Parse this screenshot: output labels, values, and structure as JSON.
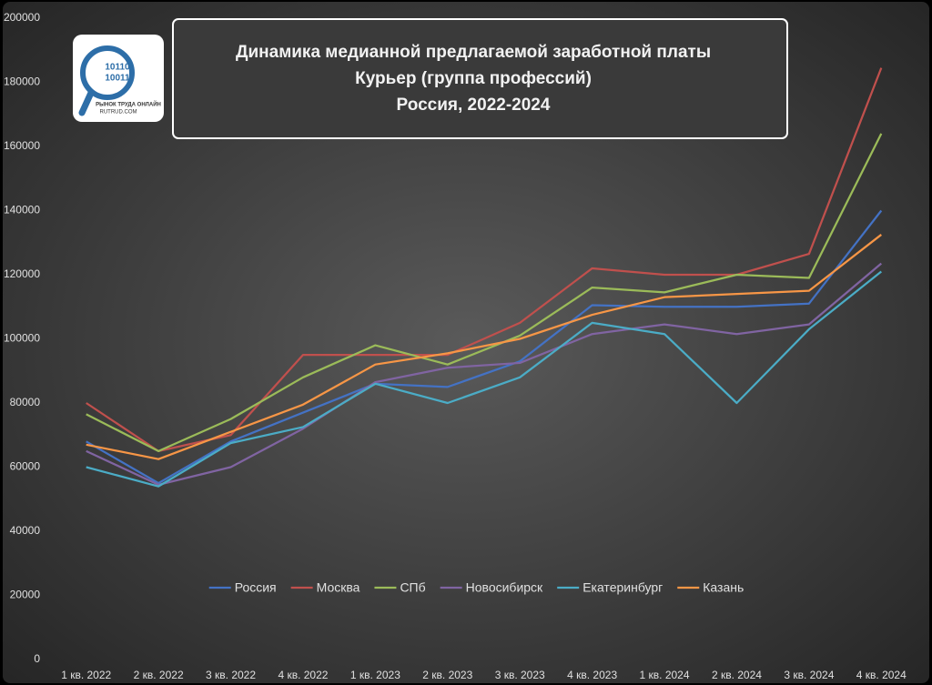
{
  "chart_data": {
    "type": "line",
    "title": [
      "Динамика медианной предлагаемой заработной платы",
      "Курьер (группа профессий)",
      "Россия, 2022-2024"
    ],
    "logo": {
      "digits": [
        "10110",
        "10011"
      ],
      "text": "РЫНОК ТРУДА ОНЛАЙН",
      "url": "RUTRUD.COM"
    },
    "categories": [
      "1 кв. 2022",
      "2 кв. 2022",
      "3 кв. 2022",
      "4 кв. 2022",
      "1 кв. 2023",
      "2 кв. 2023",
      "3 кв. 2023",
      "4 кв. 2023",
      "1 кв. 2024",
      "2 кв. 2024",
      "3 кв. 2024",
      "4 кв. 2024"
    ],
    "series": [
      {
        "name": "Россия",
        "color": "#4472c4",
        "values": [
          68000,
          55000,
          68000,
          77000,
          86000,
          85000,
          93000,
          110500,
          110000,
          110000,
          111000,
          140000
        ]
      },
      {
        "name": "Москва",
        "color": "#c0504d",
        "values": [
          80000,
          65000,
          70000,
          95000,
          95000,
          95000,
          105000,
          122000,
          120000,
          120000,
          126500,
          184500
        ]
      },
      {
        "name": "СПб",
        "color": "#9bbb59",
        "values": [
          76500,
          65000,
          75000,
          88000,
          98000,
          92000,
          101000,
          116000,
          114500,
          120000,
          119000,
          164000
        ]
      },
      {
        "name": "Новосибирск",
        "color": "#8064a2",
        "values": [
          65000,
          54500,
          60000,
          72000,
          86500,
          91000,
          92500,
          101500,
          104500,
          101500,
          104500,
          123500
        ]
      },
      {
        "name": "Екатеринбург",
        "color": "#4bacc6",
        "values": [
          60000,
          54000,
          67500,
          72500,
          86000,
          80000,
          88000,
          105000,
          101500,
          80000,
          103000,
          121000
        ]
      },
      {
        "name": "Казань",
        "color": "#f79646",
        "values": [
          67000,
          62500,
          71000,
          79500,
          92000,
          95500,
          100000,
          107500,
          113000,
          114000,
          115000,
          132500
        ]
      }
    ],
    "ylim": [
      0,
      200000
    ],
    "yticks": [
      0,
      20000,
      40000,
      60000,
      80000,
      100000,
      120000,
      140000,
      160000,
      180000,
      200000
    ],
    "grid": false,
    "legend": "bottom"
  }
}
